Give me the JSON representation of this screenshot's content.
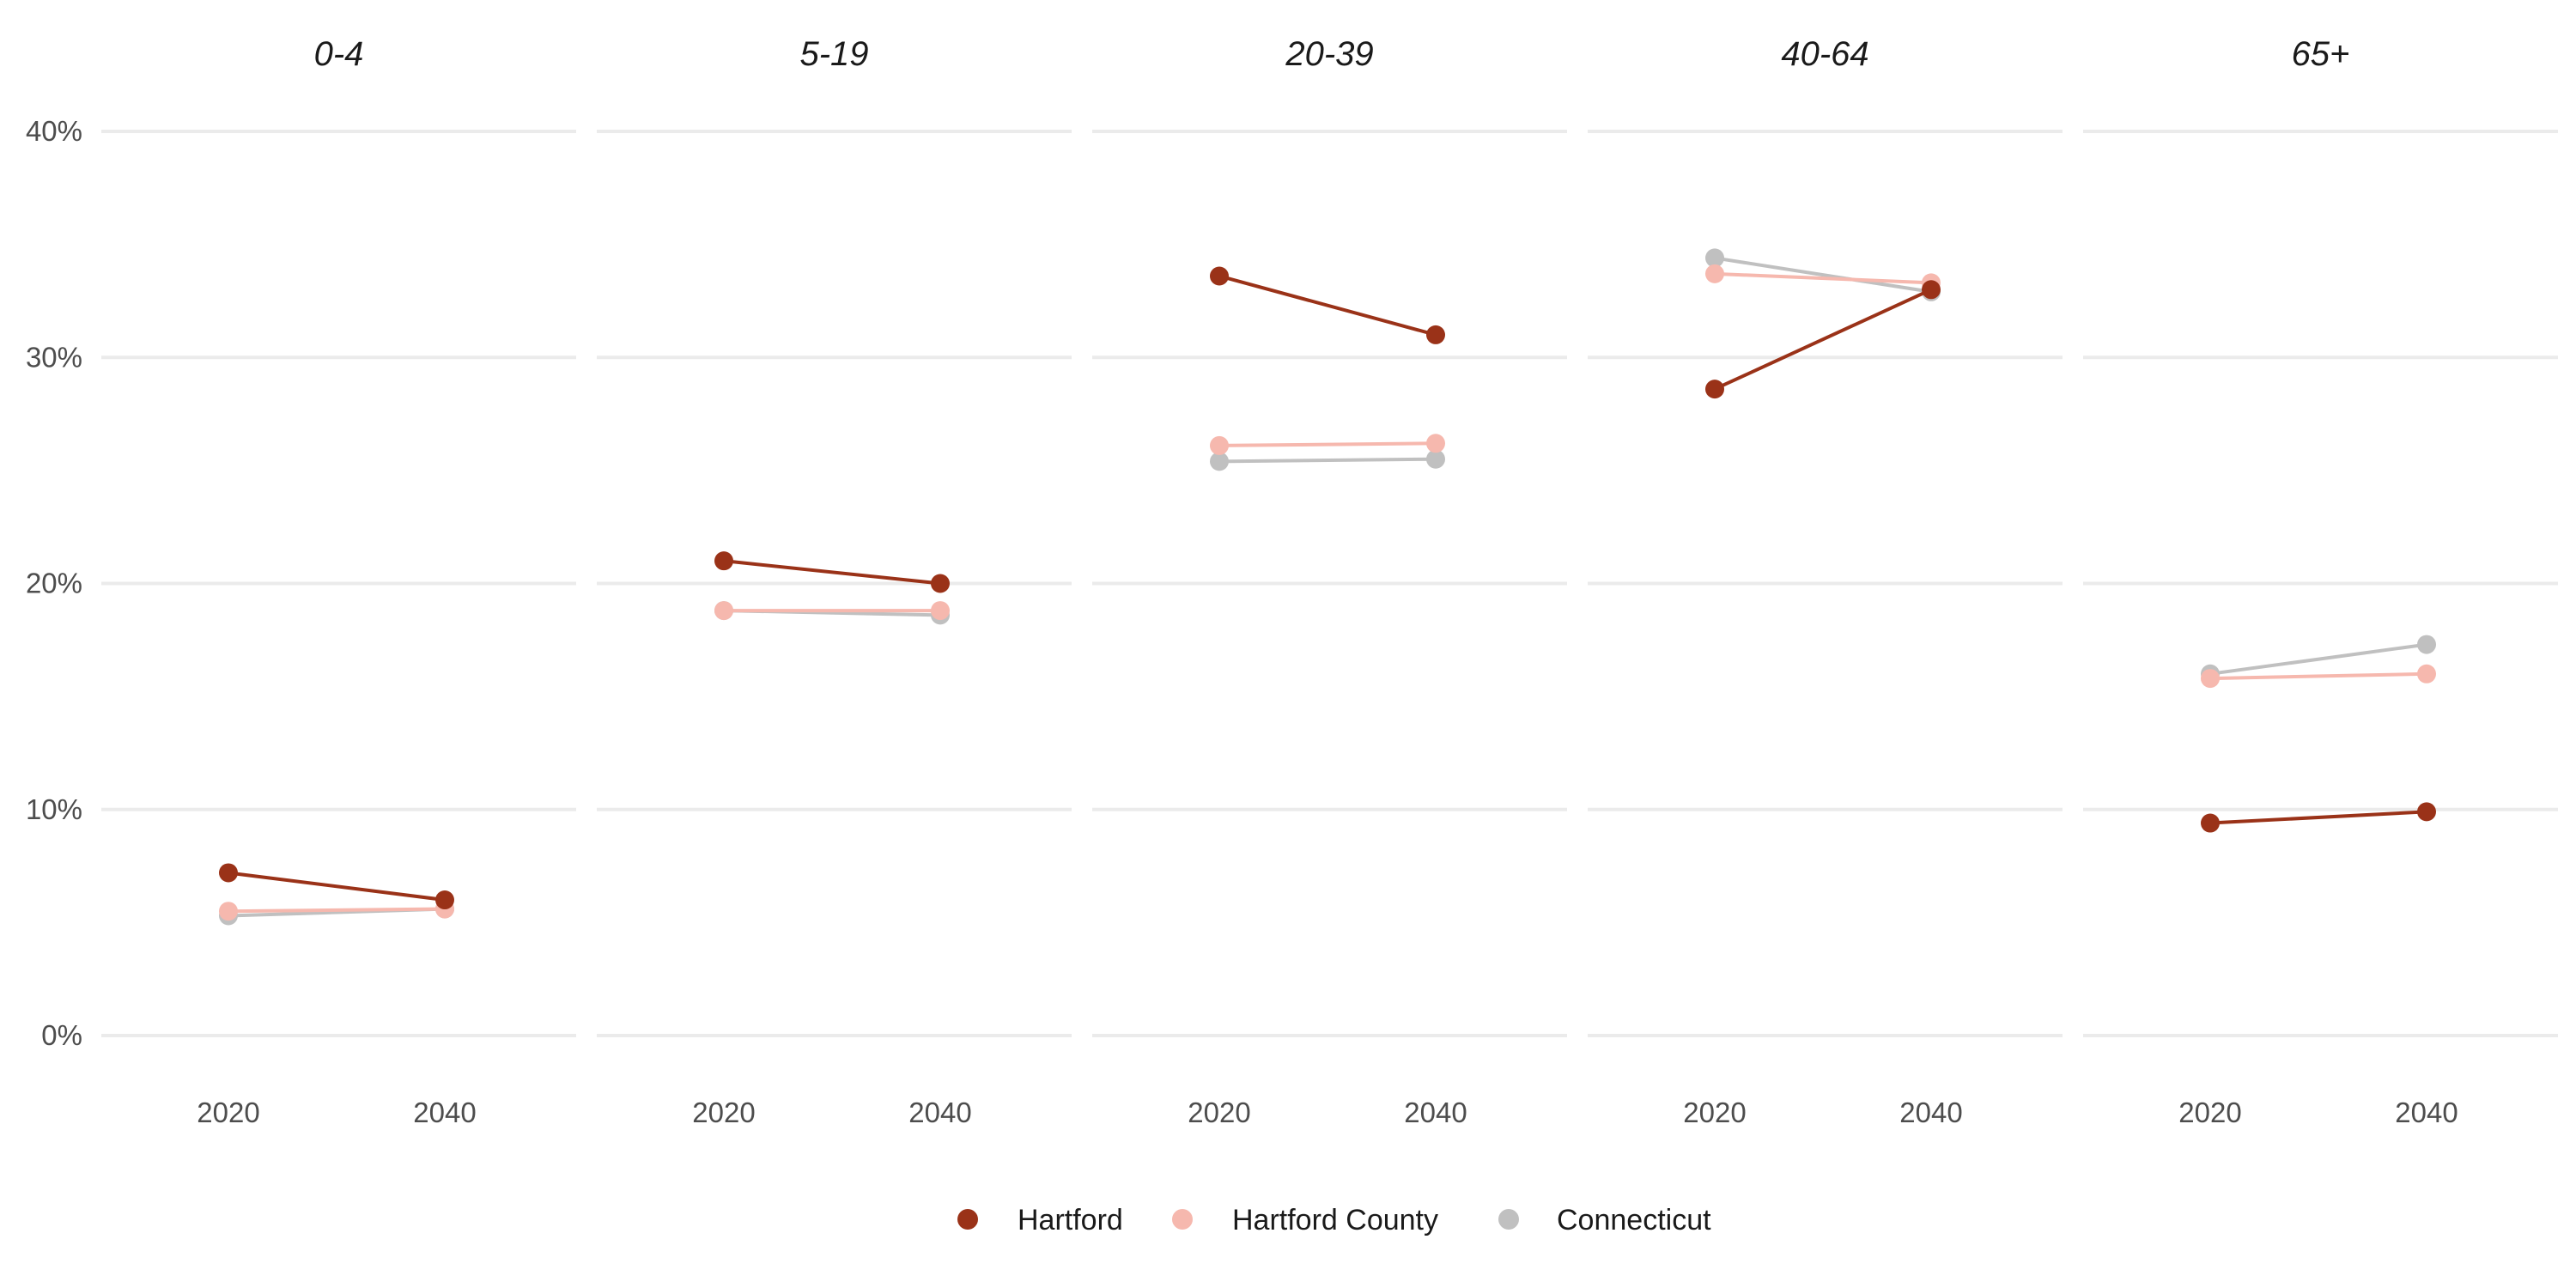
{
  "chart_data": {
    "type": "line",
    "facets": [
      "0-4",
      "5-19",
      "20-39",
      "40-64",
      "65+"
    ],
    "x": [
      "2020",
      "2040"
    ],
    "y_ticks": [
      "0%",
      "10%",
      "20%",
      "30%",
      "40%"
    ],
    "ylim": [
      0,
      40
    ],
    "y_unit": "percent",
    "grid": true,
    "legend_position": "bottom",
    "series": [
      {
        "name": "Hartford",
        "color": "#9a3218",
        "values": [
          [
            7.2,
            6.0
          ],
          [
            21.0,
            20.0
          ],
          [
            33.6,
            31.0
          ],
          [
            28.6,
            33.0
          ],
          [
            9.4,
            9.9
          ]
        ]
      },
      {
        "name": "Hartford County",
        "color": "#f6b8ae",
        "values": [
          [
            5.5,
            5.6
          ],
          [
            18.8,
            18.8
          ],
          [
            26.1,
            26.2
          ],
          [
            33.7,
            33.3
          ],
          [
            15.8,
            16.0
          ]
        ]
      },
      {
        "name": "Connecticut",
        "color": "#c0c0c0",
        "values": [
          [
            5.3,
            5.6
          ],
          [
            18.8,
            18.6
          ],
          [
            25.4,
            25.5
          ],
          [
            34.4,
            32.9
          ],
          [
            16.0,
            17.3
          ]
        ]
      }
    ]
  }
}
